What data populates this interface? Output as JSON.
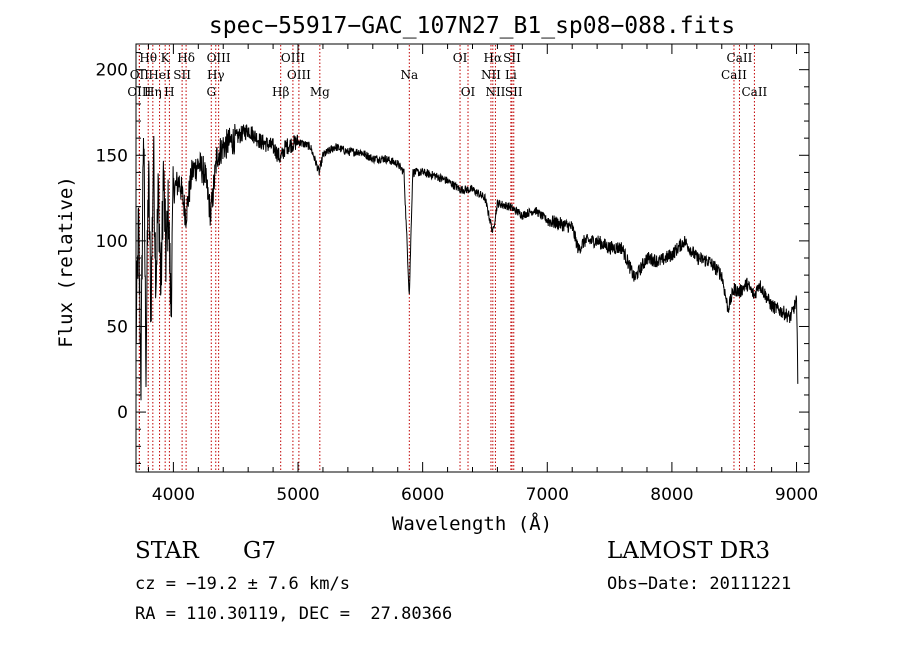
{
  "chart_data": {
    "type": "line",
    "title": "spec−55917−GAC_107N27_B1_sp08−088.fits",
    "xlabel": "Wavelength (Å)",
    "ylabel": "Flux (relative)",
    "xlim": [
      3700,
      9100
    ],
    "ylim": [
      -35,
      215
    ],
    "xticks": [
      4000,
      5000,
      6000,
      7000,
      8000,
      9000
    ],
    "xtick_labels": [
      "4000",
      "5000",
      "6000",
      "7000",
      "8000",
      "9000"
    ],
    "yticks": [
      0,
      50,
      100,
      150,
      200
    ],
    "ytick_labels": [
      "0",
      "50",
      "100",
      "150",
      "200"
    ],
    "grid": false,
    "series": [
      {
        "name": "flux",
        "anchors": [
          [
            3700,
            40
          ],
          [
            3720,
            110
          ],
          [
            3740,
            20
          ],
          [
            3760,
            170
          ],
          [
            3780,
            30
          ],
          [
            3800,
            140
          ],
          [
            3820,
            60
          ],
          [
            3840,
            150
          ],
          [
            3860,
            80
          ],
          [
            3880,
            130
          ],
          [
            3900,
            70
          ],
          [
            3920,
            140
          ],
          [
            3940,
            90
          ],
          [
            3960,
            120
          ],
          [
            3980,
            60
          ],
          [
            4000,
            130
          ],
          [
            4050,
            135
          ],
          [
            4100,
            115
          ],
          [
            4150,
            140
          ],
          [
            4200,
            145
          ],
          [
            4250,
            140
          ],
          [
            4300,
            115
          ],
          [
            4350,
            150
          ],
          [
            4400,
            155
          ],
          [
            4500,
            160
          ],
          [
            4600,
            165
          ],
          [
            4700,
            158
          ],
          [
            4800,
            155
          ],
          [
            4860,
            148
          ],
          [
            4900,
            155
          ],
          [
            5000,
            158
          ],
          [
            5100,
            155
          ],
          [
            5170,
            140
          ],
          [
            5200,
            150
          ],
          [
            5300,
            155
          ],
          [
            5400,
            152
          ],
          [
            5500,
            152
          ],
          [
            5600,
            148
          ],
          [
            5700,
            148
          ],
          [
            5800,
            145
          ],
          [
            5850,
            140
          ],
          [
            5893,
            68
          ],
          [
            5920,
            140
          ],
          [
            6000,
            140
          ],
          [
            6100,
            138
          ],
          [
            6200,
            135
          ],
          [
            6300,
            130
          ],
          [
            6400,
            130
          ],
          [
            6500,
            125
          ],
          [
            6563,
            105
          ],
          [
            6600,
            122
          ],
          [
            6700,
            120
          ],
          [
            6800,
            115
          ],
          [
            6900,
            118
          ],
          [
            7000,
            112
          ],
          [
            7100,
            110
          ],
          [
            7200,
            108
          ],
          [
            7250,
            95
          ],
          [
            7300,
            100
          ],
          [
            7400,
            100
          ],
          [
            7500,
            96
          ],
          [
            7600,
            96
          ],
          [
            7700,
            78
          ],
          [
            7800,
            90
          ],
          [
            7900,
            88
          ],
          [
            8000,
            92
          ],
          [
            8100,
            100
          ],
          [
            8200,
            90
          ],
          [
            8300,
            88
          ],
          [
            8400,
            80
          ],
          [
            8450,
            60
          ],
          [
            8498,
            72
          ],
          [
            8542,
            70
          ],
          [
            8600,
            75
          ],
          [
            8662,
            68
          ],
          [
            8700,
            75
          ],
          [
            8800,
            62
          ],
          [
            8900,
            58
          ],
          [
            8950,
            55
          ],
          [
            9000,
            65
          ],
          [
            9010,
            20
          ]
        ]
      }
    ],
    "spectral_lines": [
      {
        "label": "Hθ",
        "wave": 3798,
        "row": 1
      },
      {
        "label": "OII",
        "wave": 3727,
        "row": 2
      },
      {
        "label": "OIII",
        "wave": 3727,
        "row": 3
      },
      {
        "label": "K",
        "wave": 3934,
        "row": 1
      },
      {
        "label": "Hη",
        "wave": 3835,
        "row": 3
      },
      {
        "label": "HeI",
        "wave": 3889,
        "row": 2
      },
      {
        "label": "H",
        "wave": 3968,
        "row": 3
      },
      {
        "label": "SII",
        "wave": 4070,
        "row": 2
      },
      {
        "label": "Hδ",
        "wave": 4102,
        "row": 1
      },
      {
        "label": "OIII",
        "wave": 4363,
        "row": 1
      },
      {
        "label": "Hγ",
        "wave": 4340,
        "row": 2
      },
      {
        "label": "G",
        "wave": 4304,
        "row": 3
      },
      {
        "label": "Hβ",
        "wave": 4861,
        "row": 3
      },
      {
        "label": "OIII",
        "wave": 4959,
        "row": 1
      },
      {
        "label": "OIII",
        "wave": 5007,
        "row": 2
      },
      {
        "label": "Mg",
        "wave": 5175,
        "row": 3
      },
      {
        "label": "Na",
        "wave": 5893,
        "row": 2
      },
      {
        "label": "OI",
        "wave": 6300,
        "row": 1
      },
      {
        "label": "OI",
        "wave": 6364,
        "row": 3
      },
      {
        "label": "Hα",
        "wave": 6563,
        "row": 1
      },
      {
        "label": "NII",
        "wave": 6548,
        "row": 2
      },
      {
        "label": "NII",
        "wave": 6584,
        "row": 3
      },
      {
        "label": "SII",
        "wave": 6717,
        "row": 1
      },
      {
        "label": "Li",
        "wave": 6708,
        "row": 2
      },
      {
        "label": "SII",
        "wave": 6731,
        "row": 3
      },
      {
        "label": "CaII",
        "wave": 8542,
        "row": 1
      },
      {
        "label": "CaII",
        "wave": 8498,
        "row": 2
      },
      {
        "label": "CaII",
        "wave": 8662,
        "row": 3
      }
    ]
  },
  "info": {
    "class": "STAR",
    "subclass": "G7",
    "survey": "LAMOST DR3",
    "cz": "cz = −19.2 ± 7.6 km/s",
    "obs_date": "Obs−Date: 20111221",
    "coords": "RA = 110.30119, DEC =  27.80366"
  },
  "colors": {
    "line": "#c00000",
    "axes": "#000000",
    "flux": "#000000"
  }
}
